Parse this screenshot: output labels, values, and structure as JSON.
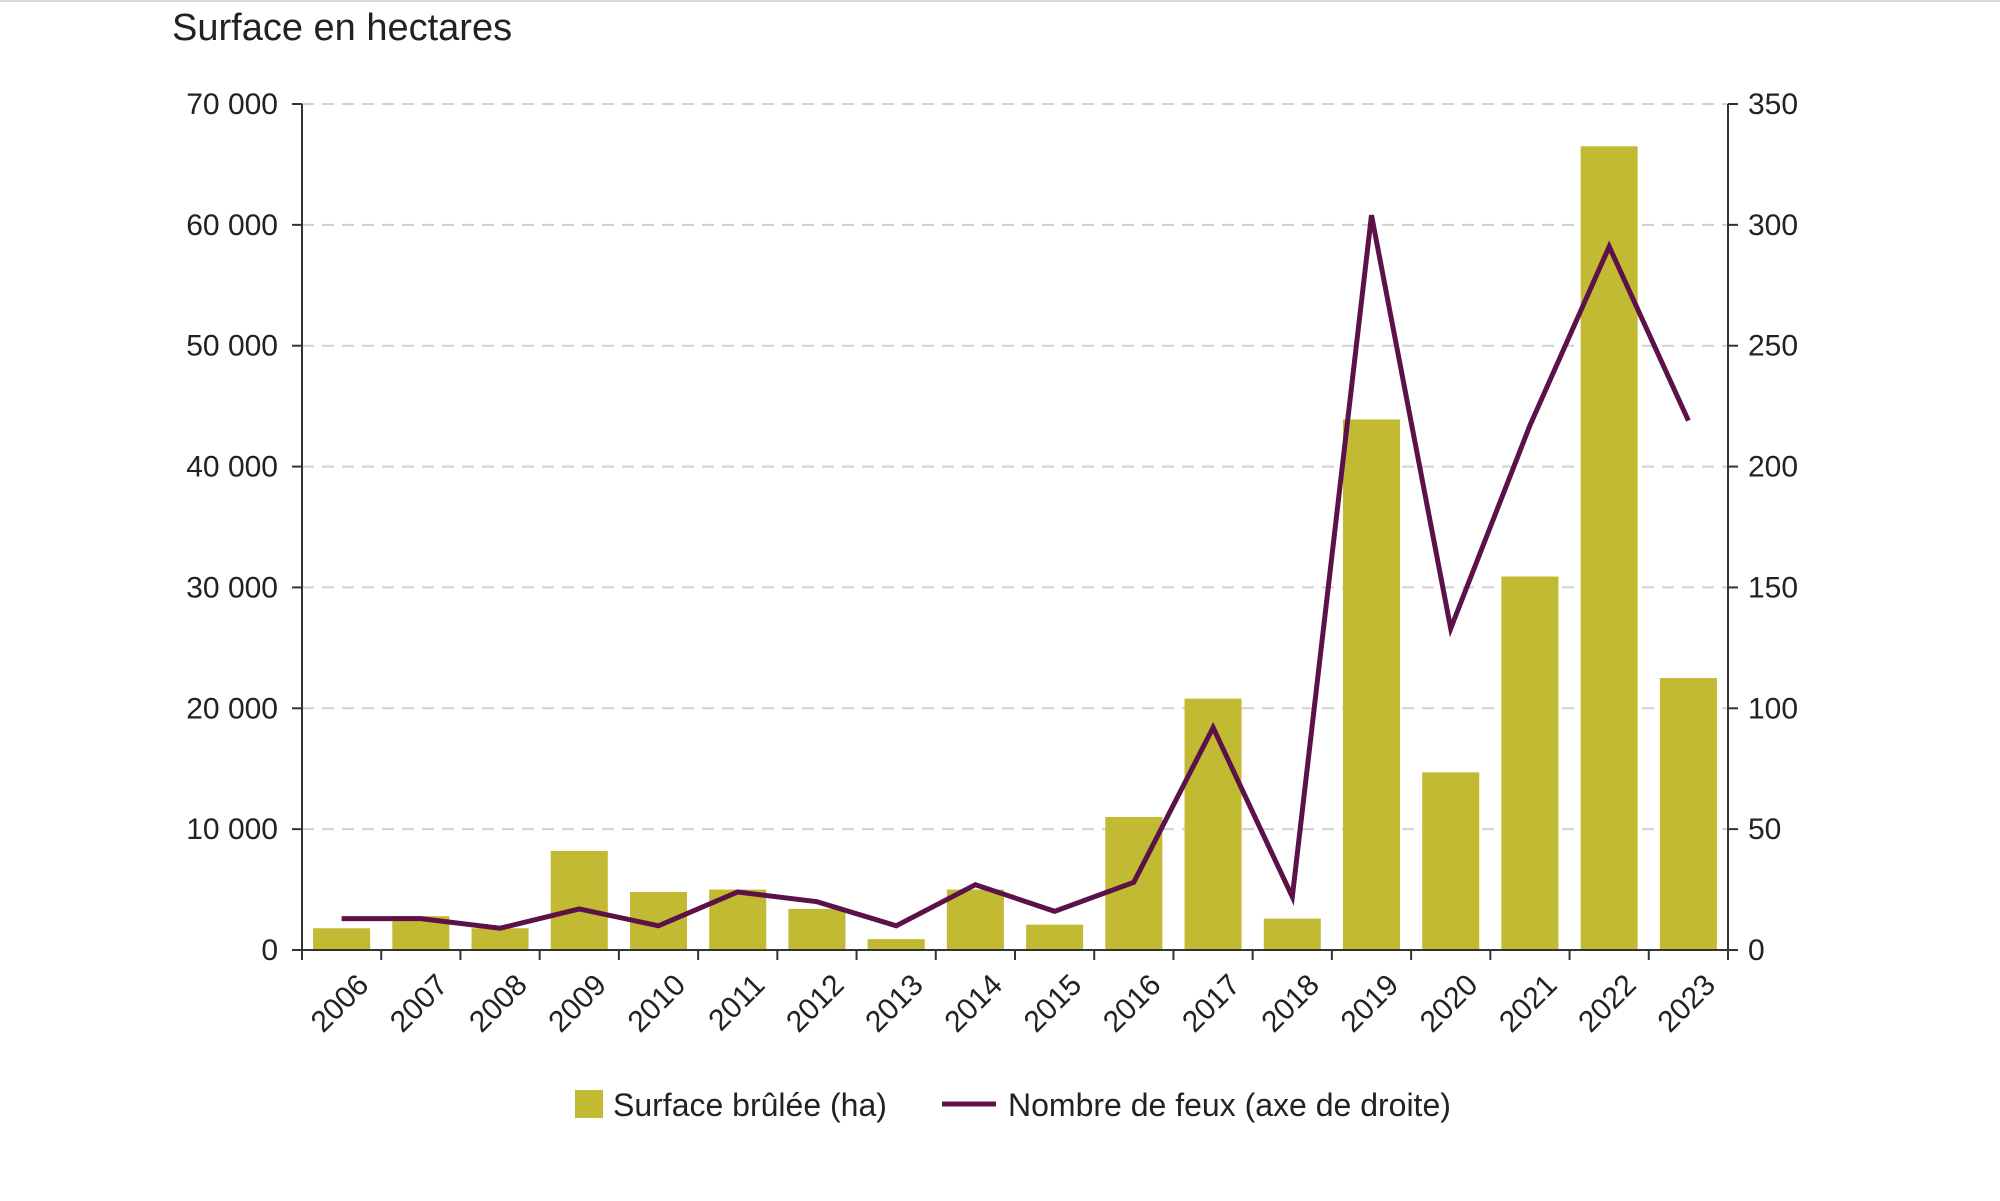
{
  "chart_data": {
    "type": "bar",
    "title": "",
    "ylabel": "Surface en hectares",
    "xlabel": "",
    "categories": [
      "2006",
      "2007",
      "2008",
      "2009",
      "2010",
      "2011",
      "2012",
      "2013",
      "2014",
      "2015",
      "2016",
      "2017",
      "2018",
      "2019",
      "2020",
      "2021",
      "2022",
      "2023"
    ],
    "series": [
      {
        "name": "Surface brûlée (ha)",
        "type": "bar",
        "axis": "left",
        "color": "#c2ba32",
        "values": [
          1800,
          2800,
          1800,
          8200,
          4800,
          5000,
          3400,
          900,
          5000,
          2100,
          11000,
          20800,
          2600,
          43900,
          14700,
          30900,
          66500,
          22500
        ]
      },
      {
        "name": "Nombre de feux (axe de droite)",
        "type": "line",
        "axis": "right",
        "color": "#5c1149",
        "values": [
          13,
          13,
          9,
          17,
          10,
          24,
          20,
          10,
          27,
          16,
          28,
          92,
          22,
          304,
          133,
          217,
          291,
          219
        ]
      }
    ],
    "ylim": [
      0,
      70000
    ],
    "y_ticks": [
      "0",
      "10 000",
      "20 000",
      "30 000",
      "40 000",
      "50 000",
      "60 000",
      "70 000"
    ],
    "y2lim": [
      0,
      350
    ],
    "y2_ticks": [
      "0",
      "50",
      "100",
      "150",
      "200",
      "250",
      "300",
      "350"
    ],
    "grid": "horizontal dashed",
    "legend_position": "bottom"
  }
}
